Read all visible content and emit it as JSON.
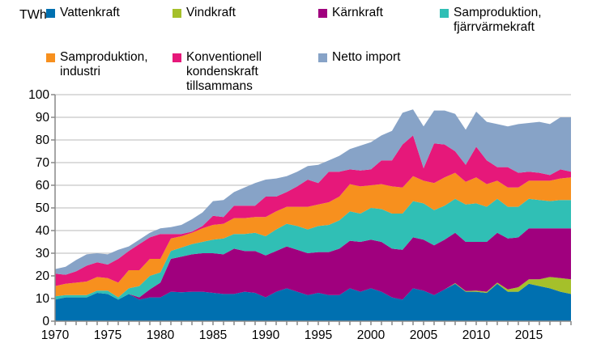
{
  "chart_data": {
    "type": "area",
    "stacked": true,
    "ylabel": "TWh",
    "ylim": [
      0,
      100
    ],
    "yticks": [
      "0",
      "10",
      "20",
      "30",
      "40",
      "50",
      "60",
      "70",
      "80",
      "90",
      "100"
    ],
    "xticks": [
      "1970",
      "1975",
      "1980",
      "1985",
      "1990",
      "1995",
      "2000",
      "2005",
      "2010",
      "2015"
    ],
    "grid": true,
    "legend": "top",
    "x": [
      1970,
      1971,
      1972,
      1973,
      1974,
      1975,
      1976,
      1977,
      1978,
      1979,
      1980,
      1981,
      1982,
      1983,
      1984,
      1985,
      1986,
      1987,
      1988,
      1989,
      1990,
      1991,
      1992,
      1993,
      1994,
      1995,
      1996,
      1997,
      1998,
      1999,
      2000,
      2001,
      2002,
      2003,
      2004,
      2005,
      2006,
      2007,
      2008,
      2009,
      2010,
      2011,
      2012,
      2013,
      2014,
      2015,
      2016,
      2017,
      2018,
      2019
    ],
    "series": [
      {
        "name": "Vattenkraft",
        "color": "#0070b0",
        "values": [
          9.5,
          10.5,
          10.5,
          10.5,
          12.5,
          12,
          9.5,
          12,
          9.5,
          10.5,
          10.5,
          13,
          12.8,
          13,
          13,
          12.5,
          12,
          12,
          13,
          12.5,
          10.5,
          13,
          14.5,
          13,
          11.5,
          12.5,
          11.5,
          11.5,
          14.5,
          13,
          14.5,
          13,
          10.5,
          9.5,
          14.5,
          13.5,
          11.5,
          14,
          16.5,
          13,
          13,
          12.5,
          16.5,
          13,
          13,
          16.5,
          15.5,
          14.5,
          13,
          12
        ]
      },
      {
        "name": "Vindkraft",
        "color": "#a5c02a",
        "values": [
          0,
          0,
          0,
          0,
          0,
          0,
          0,
          0,
          0,
          0,
          0,
          0,
          0,
          0,
          0,
          0,
          0,
          0,
          0,
          0,
          0,
          0,
          0,
          0,
          0,
          0,
          0,
          0,
          0,
          0,
          0,
          0,
          0,
          0,
          0,
          0,
          0,
          0,
          0.3,
          0.3,
          0.5,
          0.5,
          0.5,
          1,
          2,
          2,
          3,
          5,
          6,
          6.5
        ]
      },
      {
        "name": "Kärnkraft",
        "color": "#a0007e",
        "values": [
          0,
          0,
          0,
          0,
          0,
          0,
          0,
          0,
          1,
          3.5,
          6.5,
          14.5,
          15.7,
          16.5,
          17,
          17.5,
          17.5,
          20,
          18,
          18.5,
          18.5,
          18,
          18.5,
          18.5,
          18.5,
          18,
          19,
          20.5,
          21,
          22,
          21.5,
          22,
          21.5,
          22,
          22.5,
          22.5,
          22,
          22,
          22.2,
          21.7,
          21.5,
          22,
          22,
          22.5,
          22,
          22.5,
          22.5,
          21.5,
          22,
          22.5
        ]
      },
      {
        "name": "Samproduktion, fjärrvärmekraft",
        "color": "#30bfb5",
        "values": [
          1.5,
          1,
          1,
          1,
          1,
          1.5,
          1,
          2.5,
          5,
          6,
          4.5,
          3.5,
          4,
          4.5,
          5,
          6,
          7,
          6.5,
          7.5,
          8,
          8.5,
          9.5,
          10,
          10.5,
          10.5,
          11.5,
          12,
          12.5,
          13,
          12.5,
          14,
          14.5,
          15.5,
          16,
          16,
          16,
          15.5,
          15,
          15,
          16.5,
          17,
          15.5,
          15,
          14,
          13.5,
          13,
          12.5,
          12,
          12.5,
          12.5
        ]
      },
      {
        "name": "Samproduktion, industri",
        "color": "#f7901e",
        "values": [
          4.5,
          5,
          5.5,
          6,
          6,
          5.5,
          6.5,
          8,
          7,
          7.5,
          6,
          5.5,
          5,
          5,
          6,
          6.5,
          6.5,
          7,
          7,
          7,
          8.5,
          8,
          7.5,
          8.5,
          10,
          9.5,
          10,
          10.5,
          12,
          12,
          10,
          11,
          12,
          11.5,
          11,
          10,
          12,
          12.5,
          11.5,
          10,
          11.5,
          10,
          8,
          8.5,
          8.5,
          8,
          8.5,
          9,
          9.5,
          10
        ]
      },
      {
        "name": "Konventionell kondenskraft tillsammans",
        "color": "#e6187a",
        "values": [
          5.5,
          4,
          5,
          7,
          6.5,
          6,
          10.5,
          8.5,
          11.5,
          9.5,
          11,
          2,
          1,
          0.5,
          1,
          4,
          3,
          5.5,
          5.5,
          5,
          9,
          6.5,
          6.5,
          9,
          12,
          9.5,
          13.5,
          11,
          6.5,
          7,
          7,
          10.5,
          11.5,
          19,
          18,
          5.5,
          17.5,
          14.5,
          9.5,
          7.5,
          13.5,
          10.5,
          6,
          9,
          6.5,
          4,
          3.5,
          2.5,
          4,
          2.5
        ]
      },
      {
        "name": "Netto import",
        "color": "#87a3c7",
        "values": [
          2,
          3.5,
          5,
          5,
          4,
          4.5,
          4,
          2,
          2,
          2,
          2.5,
          3,
          4,
          5.5,
          6,
          6.5,
          7.5,
          6,
          8,
          10,
          7.5,
          8,
          7,
          6.5,
          6,
          8,
          5,
          7,
          9,
          11,
          12,
          11,
          13,
          14,
          11.5,
          18.5,
          14.5,
          15,
          16.5,
          15.5,
          15.5,
          17,
          19,
          18,
          21.5,
          21.5,
          22.5,
          22.5,
          23,
          24
        ]
      }
    ]
  },
  "legend": [
    {
      "line1": "Vattenkraft",
      "line2": "",
      "line3": ""
    },
    {
      "line1": "Vindkraft",
      "line2": "",
      "line3": ""
    },
    {
      "line1": "Kärnkraft",
      "line2": "",
      "line3": ""
    },
    {
      "line1": "Samproduktion,",
      "line2": "fjärrvärmekraft",
      "line3": ""
    },
    {
      "line1": "Samproduktion,",
      "line2": "industri",
      "line3": ""
    },
    {
      "line1": "Konventionell",
      "line2": "kondenskraft",
      "line3": "tillsammans"
    },
    {
      "line1": "Netto import",
      "line2": "",
      "line3": ""
    }
  ]
}
